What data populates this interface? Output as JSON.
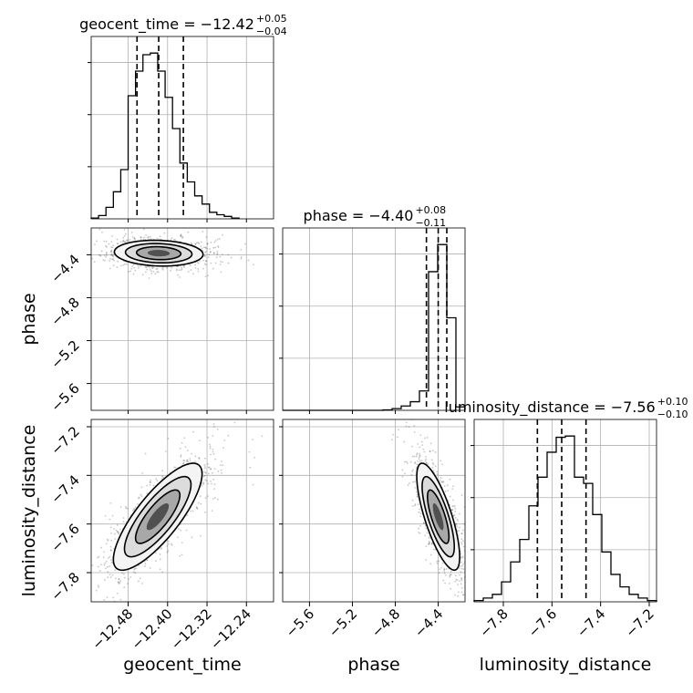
{
  "chart_data": {
    "type": "corner",
    "parameters": [
      "geocent_time",
      "phase",
      "luminosity_distance"
    ],
    "axis_labels": [
      "geocent_time",
      "phase",
      "luminosity_distance"
    ],
    "ranges": {
      "geocent_time": [
        -12.555,
        -12.185
      ],
      "phase": [
        -5.85,
        -4.15
      ],
      "luminosity_distance": [
        -7.92,
        -7.17
      ]
    },
    "ticks": {
      "geocent_time": [
        -12.48,
        -12.4,
        -12.32,
        -12.24
      ],
      "phase": [
        -5.6,
        -5.2,
        -4.8,
        -4.4
      ],
      "luminosity_distance": [
        -7.8,
        -7.6,
        -7.4,
        -7.2
      ]
    },
    "tick_labels": {
      "geocent_time": [
        "−12.48",
        "−12.40",
        "−12.32",
        "−12.24"
      ],
      "phase": [
        "−5.6",
        "−5.2",
        "−4.8",
        "−4.4"
      ],
      "luminosity_distance": [
        "−7.8",
        "−7.6",
        "−7.4",
        "−7.2"
      ]
    },
    "titles": [
      {
        "name": "geocent_time = −12.42",
        "sup": "+0.05",
        "sub": "−0.04"
      },
      {
        "name": "phase = −4.40",
        "sup": "+0.08",
        "sub": "−0.11"
      },
      {
        "name": "luminosity_distance = −7.56",
        "sup": "+0.10",
        "sub": "−0.10"
      }
    ],
    "quantiles": {
      "geocent_time": [
        -12.462,
        -12.418,
        -12.368
      ],
      "phase": [
        -4.51,
        -4.4,
        -4.32
      ],
      "luminosity_distance": [
        -7.66,
        -7.56,
        -7.46
      ]
    },
    "histograms": {
      "geocent_time": {
        "bins": [
          -12.555,
          -12.54,
          -12.525,
          -12.51,
          -12.495,
          -12.48,
          -12.465,
          -12.45,
          -12.435,
          -12.42,
          -12.405,
          -12.39,
          -12.375,
          -12.36,
          -12.345,
          -12.33,
          -12.315,
          -12.3,
          -12.285,
          -12.27,
          -12.255
        ],
        "counts": [
          1,
          4,
          14,
          33,
          60,
          150,
          180,
          200,
          202,
          180,
          148,
          110,
          68,
          45,
          28,
          18,
          8,
          5,
          3,
          1
        ]
      },
      "phase": {
        "bins": [
          -5.85,
          -5.765,
          -5.68,
          -5.595,
          -5.51,
          -5.425,
          -5.34,
          -5.255,
          -5.17,
          -5.085,
          -5.0,
          -4.915,
          -4.83,
          -4.745,
          -4.66,
          -4.575,
          -4.49,
          -4.405,
          -4.32,
          -4.235,
          -4.15
        ],
        "counts": [
          0,
          0,
          0,
          0,
          0,
          0,
          0,
          0,
          0,
          0,
          0,
          1,
          4,
          10,
          20,
          45,
          322,
          385,
          215,
          8
        ]
      },
      "luminosity_distance": {
        "bins": [
          -7.92,
          -7.8825,
          -7.845,
          -7.8075,
          -7.77,
          -7.7325,
          -7.695,
          -7.6575,
          -7.62,
          -7.5825,
          -7.545,
          -7.5075,
          -7.47,
          -7.4325,
          -7.395,
          -7.3575,
          -7.32,
          -7.2825,
          -7.245,
          -7.2075,
          -7.17
        ],
        "counts": [
          1,
          3,
          6,
          16,
          32,
          50,
          77,
          100,
          120,
          132,
          133,
          100,
          95,
          70,
          40,
          22,
          12,
          6,
          3,
          1
        ]
      }
    },
    "contours": [
      {
        "x": "geocent_time",
        "y": "phase",
        "center": [
          -12.418,
          -4.385
        ],
        "sigma": [
          0.045,
          0.06
        ],
        "corr": -0.1
      },
      {
        "x": "geocent_time",
        "y": "luminosity_distance",
        "center": [
          -12.42,
          -7.57
        ],
        "sigma": [
          0.045,
          0.11
        ],
        "corr": 0.8
      },
      {
        "x": "phase",
        "y": "luminosity_distance",
        "center": [
          -4.4,
          -7.57
        ],
        "sigma": [
          0.1,
          0.11
        ],
        "corr": -0.75
      }
    ],
    "grid": true
  }
}
